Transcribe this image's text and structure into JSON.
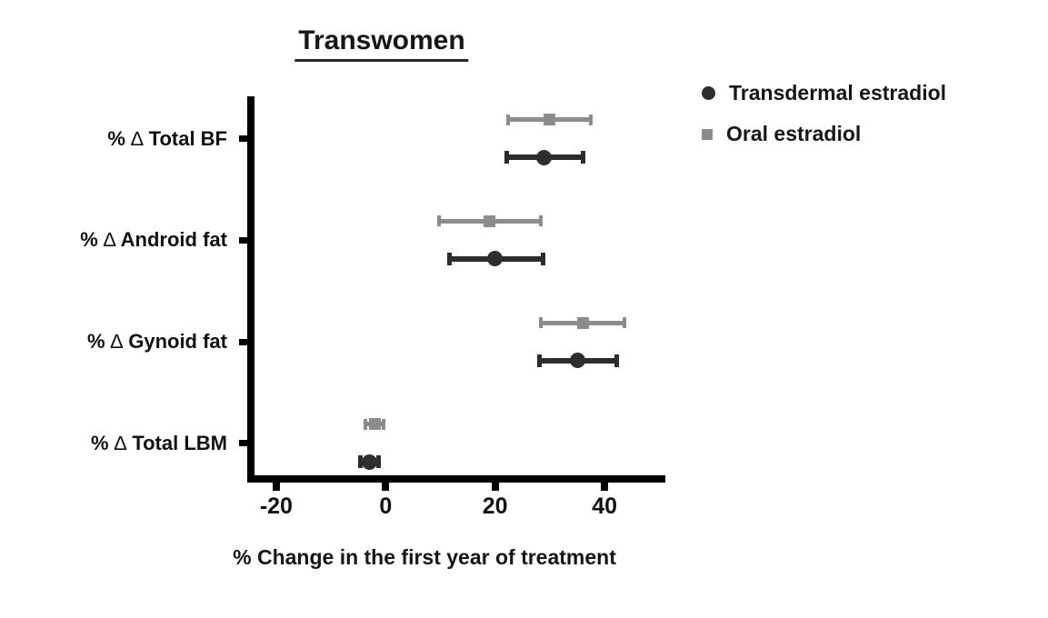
{
  "title": "Transwomen",
  "legend": {
    "items": [
      {
        "label": "Transdermal estradiol",
        "marker": "circle",
        "color": "#2d2d2d"
      },
      {
        "label": "Oral estradiol",
        "marker": "square",
        "color": "#8c8c8c"
      }
    ]
  },
  "chart_data": {
    "type": "scatter",
    "subtype": "horizontal-point-estimates-with-error-bars",
    "title": "Transwomen",
    "xlabel": "% Change in the first year of treatment",
    "xlim": [
      -26,
      51
    ],
    "xticks": [
      -20,
      0,
      20,
      40
    ],
    "grid": false,
    "legend_position": "right-top",
    "axis_color": "#000000",
    "categories": [
      "% ∆ Total BF",
      "% ∆ Android fat",
      "% ∆ Gynoid fat",
      "% ∆ Total LBM"
    ],
    "series": [
      {
        "name": "Oral estradiol",
        "marker": "square",
        "color": "#8c8c8c",
        "row_position": "top",
        "points": [
          {
            "category": "% ∆ Total BF",
            "value": 30,
            "ci": [
              22.4,
              37.5
            ]
          },
          {
            "category": "% ∆ Android fat",
            "value": 19,
            "ci": [
              9.8,
              28.4
            ]
          },
          {
            "category": "% ∆ Gynoid fat",
            "value": 36,
            "ci": [
              28.4,
              43.7
            ]
          },
          {
            "category": "% ∆ Total LBM",
            "value": -2,
            "ci": [
              -3.7,
              -0.4
            ]
          }
        ]
      },
      {
        "name": "Transdermal estradiol",
        "marker": "circle",
        "color": "#2d2d2d",
        "row_position": "bottom",
        "points": [
          {
            "category": "% ∆ Total BF",
            "value": 29,
            "ci": [
              22.1,
              36.1
            ]
          },
          {
            "category": "% ∆ Android fat",
            "value": 20,
            "ci": [
              11.6,
              28.8
            ]
          },
          {
            "category": "% ∆ Gynoid fat",
            "value": 35,
            "ci": [
              28.1,
              42.2
            ]
          },
          {
            "category": "% ∆ Total LBM",
            "value": -3,
            "ci": [
              -4.7,
              -1.3
            ]
          }
        ]
      }
    ]
  }
}
